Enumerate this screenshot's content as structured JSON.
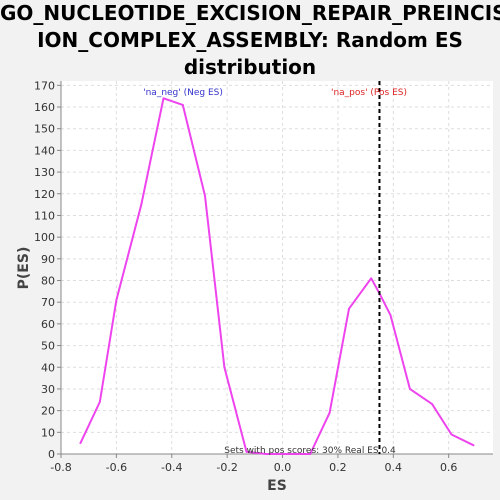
{
  "chart_data": {
    "type": "line",
    "title_lines": [
      "GO_NUCLEOTIDE_EXCISION_REPAIR_PREINCIS",
      "ION_COMPLEX_ASSEMBLY: Random ES",
      "distribution"
    ],
    "xlabel": "ES",
    "ylabel": "P(ES)",
    "xlim": [
      -0.8,
      0.76
    ],
    "ylim": [
      0,
      172
    ],
    "xticks": [
      -0.8,
      -0.6,
      -0.4,
      -0.2,
      0.0,
      0.2,
      0.4,
      0.6
    ],
    "xtick_labels": [
      "-0.8",
      "-0.6",
      "-0.4",
      "-0.2",
      "0.0",
      "0.2",
      "0.4",
      "0.6"
    ],
    "yticks": [
      0,
      10,
      20,
      30,
      40,
      50,
      60,
      70,
      80,
      90,
      100,
      110,
      120,
      130,
      140,
      150,
      160,
      170
    ],
    "grid": true,
    "series": [
      {
        "color": "#ee44ee",
        "x": [
          -0.73,
          -0.66,
          -0.6,
          -0.51,
          -0.43,
          -0.36,
          -0.28,
          -0.21,
          -0.13,
          -0.06,
          0.02,
          0.1,
          0.17,
          0.24,
          0.32,
          0.35,
          0.39,
          0.46,
          0.54,
          0.61,
          0.69
        ],
        "y": [
          5,
          24,
          71,
          115,
          164,
          161,
          119,
          40,
          1,
          0,
          0,
          0,
          19,
          67,
          81,
          74,
          64,
          30,
          23,
          9,
          4
        ]
      }
    ],
    "real_es": 0.35,
    "real_es_color": "#000000",
    "annotations": {
      "neg_label": "'na_neg' (Neg ES)",
      "neg_color": "#3333cc",
      "pos_label": "'na_pos' (Pos ES)",
      "pos_color": "#dd2222",
      "stats": "Sets with pos scores: 30%   Real ES 0.4",
      "stats_color": "#333333"
    }
  }
}
